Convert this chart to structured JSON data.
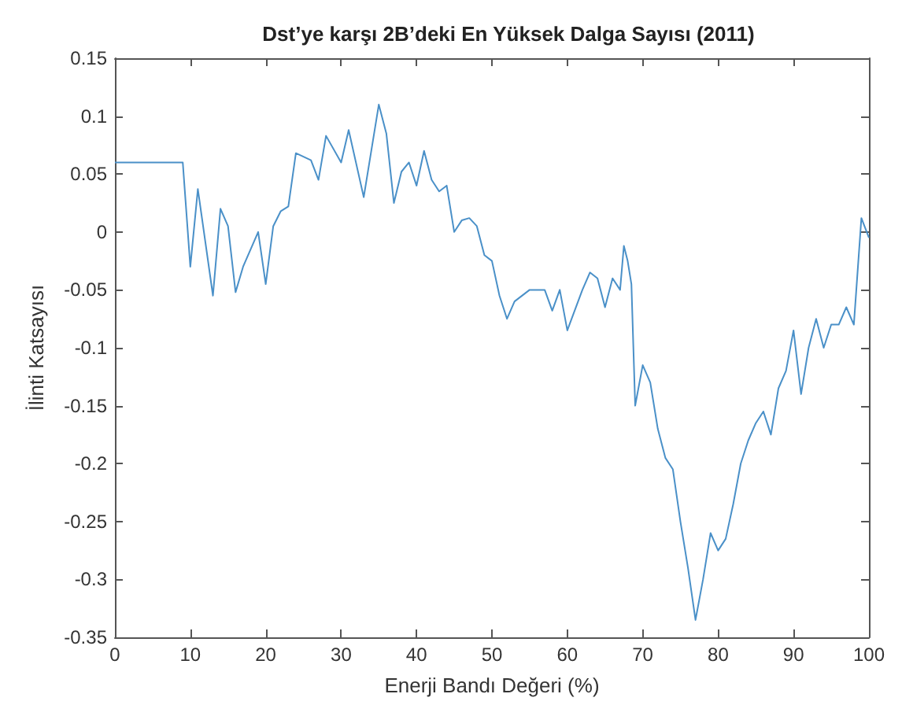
{
  "chart_data": {
    "type": "line",
    "title": "Dst’ye karşı 2B’deki En Yüksek Dalga Sayısı (2011)",
    "xlabel": "Enerji Bandı Değeri (%)",
    "ylabel": "İlinti Katsayısı",
    "x": [
      0,
      9,
      10,
      11,
      13,
      14,
      15,
      16,
      17,
      19,
      20,
      21,
      22,
      23,
      24,
      26,
      27,
      28,
      30,
      31,
      33,
      35,
      36,
      37,
      38,
      39,
      40,
      41,
      42,
      43,
      44,
      45,
      46,
      47,
      48,
      49,
      50,
      51,
      52,
      53,
      55,
      57,
      58,
      59,
      60,
      62,
      63,
      64,
      65,
      66,
      67,
      67.5,
      68,
      68.5,
      69,
      70,
      71,
      72,
      73,
      74,
      75,
      76,
      77,
      78,
      79,
      80,
      81,
      82,
      83,
      84,
      85,
      86,
      87,
      88,
      89,
      90,
      91,
      92,
      93,
      94,
      95,
      96,
      97,
      98,
      99,
      100
    ],
    "series": [
      {
        "color": "#4a90c8",
        "values": [
          0.06,
          0.06,
          -0.03,
          0.037,
          -0.055,
          0.02,
          0.005,
          -0.052,
          -0.03,
          0.0,
          -0.045,
          0.005,
          0.018,
          0.022,
          0.068,
          0.062,
          0.045,
          0.083,
          0.06,
          0.088,
          0.03,
          0.11,
          0.085,
          0.025,
          0.052,
          0.06,
          0.04,
          0.07,
          0.045,
          0.035,
          0.04,
          0.0,
          0.01,
          0.012,
          0.005,
          -0.02,
          -0.025,
          -0.055,
          -0.075,
          -0.06,
          -0.05,
          -0.05,
          -0.068,
          -0.05,
          -0.085,
          -0.05,
          -0.035,
          -0.04,
          -0.065,
          -0.04,
          -0.05,
          -0.012,
          -0.025,
          -0.045,
          -0.15,
          -0.115,
          -0.13,
          -0.17,
          -0.195,
          -0.205,
          -0.25,
          -0.29,
          -0.335,
          -0.3,
          -0.26,
          -0.275,
          -0.265,
          -0.235,
          -0.2,
          -0.18,
          -0.165,
          -0.155,
          -0.175,
          -0.135,
          -0.12,
          -0.085,
          -0.14,
          -0.1,
          -0.075,
          -0.1,
          -0.08,
          -0.08,
          -0.065,
          -0.08,
          0.012,
          -0.005
        ]
      }
    ],
    "xlim": [
      0,
      100
    ],
    "xticks": [
      0,
      10,
      20,
      30,
      40,
      50,
      60,
      70,
      80,
      90,
      100
    ],
    "ylim": [
      -0.35,
      0.15
    ],
    "yticks": [
      -0.35,
      -0.3,
      -0.25,
      -0.2,
      -0.15,
      -0.1,
      -0.05,
      0,
      0.05,
      0.1,
      0.15
    ],
    "grid": false,
    "marker": "none",
    "line_style": "solid"
  }
}
